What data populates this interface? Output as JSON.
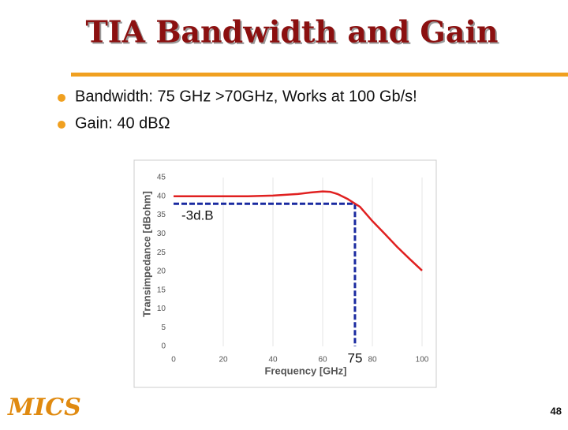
{
  "slide": {
    "title": "TIA Bandwidth and Gain",
    "bullets": [
      "Bandwidth: 75 GHz >70GHz, Works at 100 Gb/s!",
      "Gain: 40 dBΩ"
    ],
    "logo": "MICS",
    "page_number": "48"
  },
  "chart_data": {
    "type": "line",
    "x_label": "Frequency [GHz]",
    "y_label": "Transimpedance [dBohm]",
    "x": [
      0,
      10,
      20,
      30,
      40,
      50,
      55,
      60,
      63,
      66,
      70,
      75,
      80,
      85,
      90,
      95,
      100
    ],
    "series": [
      {
        "name": "Transimpedance",
        "color": "#e02020",
        "values": [
          40,
          40,
          40,
          40,
          40.2,
          40.6,
          41,
          41.3,
          41.2,
          40.6,
          39.3,
          37.2,
          33.4,
          30,
          26.5,
          23.3,
          20.2
        ]
      }
    ],
    "xlim": [
      0,
      100
    ],
    "xticks": [
      0,
      20,
      40,
      60,
      80,
      100
    ],
    "ylim": [
      0,
      45
    ],
    "yticks": [
      0,
      5,
      10,
      15,
      20,
      25,
      30,
      35,
      40,
      45
    ],
    "grid": "x",
    "reference_lines": {
      "x": 73,
      "y": 38,
      "color": "#1a2aa0"
    },
    "annotations": [
      "-3d.B",
      "75"
    ]
  }
}
